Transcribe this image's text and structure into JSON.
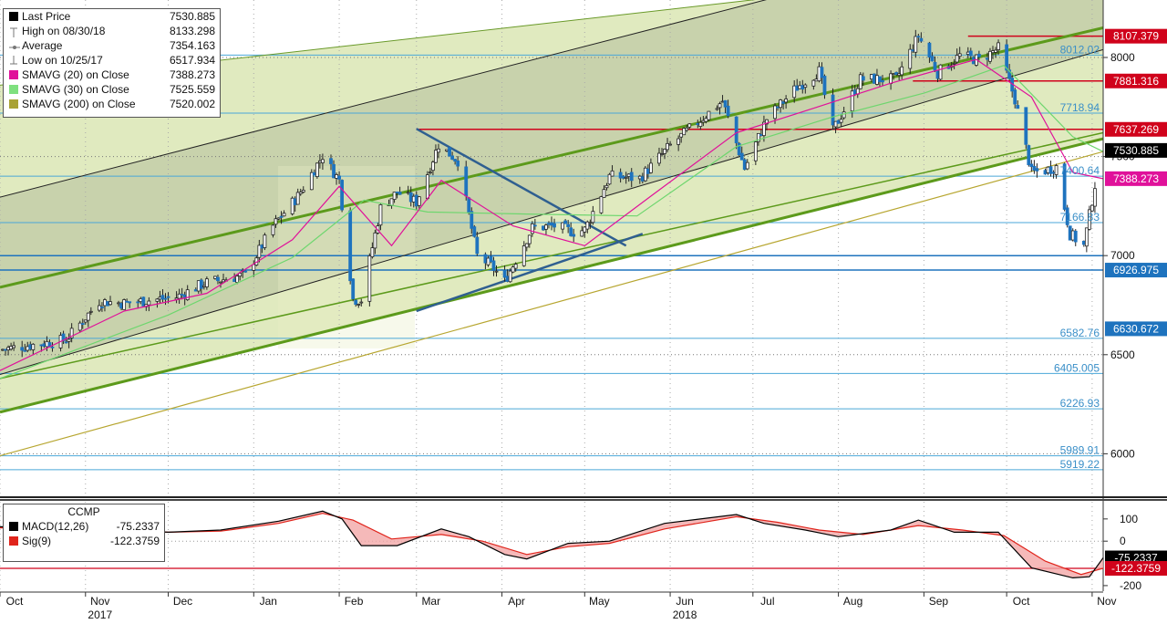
{
  "chart_data": {
    "type": "line",
    "title": "",
    "price_axis": {
      "ylim": [
        5790,
        8290
      ],
      "ticks": [
        {
          "value": 8000,
          "label": "8000"
        },
        {
          "value": 7500,
          "label": "7500"
        },
        {
          "value": 7000,
          "label": "7000"
        },
        {
          "value": 6500,
          "label": "6500"
        },
        {
          "value": 6000,
          "label": "6000"
        }
      ]
    },
    "x_axis": {
      "range": [
        "2017-10-01",
        "2018-11-05"
      ],
      "months": [
        {
          "date": "2017-10-01",
          "label": "Oct"
        },
        {
          "date": "2017-11-01",
          "label": "Nov"
        },
        {
          "date": "2017-12-01",
          "label": "Dec"
        },
        {
          "date": "2018-01-01",
          "label": "Jan"
        },
        {
          "date": "2018-02-01",
          "label": "Feb"
        },
        {
          "date": "2018-03-01",
          "label": "Mar"
        },
        {
          "date": "2018-04-01",
          "label": "Apr"
        },
        {
          "date": "2018-05-01",
          "label": "May"
        },
        {
          "date": "2018-06-01",
          "label": "Jun"
        },
        {
          "date": "2018-07-01",
          "label": "Jul"
        },
        {
          "date": "2018-08-01",
          "label": "Aug"
        },
        {
          "date": "2018-09-01",
          "label": "Sep"
        },
        {
          "date": "2018-10-01",
          "label": "Oct"
        },
        {
          "date": "2018-11-01",
          "label": "Nov"
        }
      ],
      "years": [
        {
          "date": "2017-11-01",
          "label": "2017"
        },
        {
          "date": "2018-06-01",
          "label": "2018"
        }
      ]
    },
    "legend": {
      "placement": "top-left",
      "items": [
        {
          "label": "Last Price",
          "value": "7530.885",
          "marker": "black-square",
          "color": "#000000"
        },
        {
          "label": "High on 08/30/18",
          "value": "8133.298",
          "marker": "high-icon",
          "color": "#777777"
        },
        {
          "label": "Average",
          "value": "7354.163",
          "marker": "average-icon",
          "color": "#777777"
        },
        {
          "label": "Low on 10/25/17",
          "value": "6517.934",
          "marker": "low-icon",
          "color": "#777777"
        },
        {
          "label": "SMAVG (20)  on Close",
          "value": "7388.273",
          "marker": "square",
          "color": "#e0119a"
        },
        {
          "label": "SMAVG (30)  on Close",
          "value": "7525.559",
          "marker": "square",
          "color": "#7fe07f"
        },
        {
          "label": "SMAVG (200)  on Close",
          "value": "7520.002",
          "marker": "square",
          "color": "#a9a235"
        }
      ]
    },
    "price_tags": [
      {
        "value": 8107.379,
        "label": "8107.379",
        "color": "#d0021b"
      },
      {
        "value": 7881.316,
        "label": "7881.316",
        "color": "#d0021b"
      },
      {
        "value": 7637.269,
        "label": "7637.269",
        "color": "#d0021b"
      },
      {
        "value": 7530.885,
        "label": "7530.885",
        "color": "#000000"
      },
      {
        "value": 7388.273,
        "label": "7388.273",
        "color": "#e0119a"
      },
      {
        "value": 6926.975,
        "label": "6926.975",
        "color": "#1e73be"
      },
      {
        "value": 6630.672,
        "label": "6630.672",
        "color": "#1e73be"
      }
    ],
    "fib_levels": [
      {
        "value": 8012.02,
        "label": "8012.02"
      },
      {
        "value": 7718.94,
        "label": "7718.94"
      },
      {
        "value": 7400.64,
        "label": "7400.64"
      },
      {
        "value": 7166.83,
        "label": "7166.83"
      },
      {
        "value": 6582.76,
        "label": "6582.76"
      },
      {
        "value": 6405.0,
        "label": "6405.005"
      },
      {
        "value": 6226.93,
        "label": "6226.93"
      },
      {
        "value": 5989.91,
        "label": "5989.91"
      },
      {
        "value": 5919.22,
        "label": "5919.22"
      }
    ],
    "red_lines": [
      {
        "start": "2018-09-17",
        "value": 8107.379
      },
      {
        "start": "2018-08-28",
        "value": 7881.316
      },
      {
        "start": "2018-03-01",
        "value": 7637.269
      }
    ],
    "blue_lines": [
      {
        "value": 6926.975
      },
      {
        "value": 7000
      }
    ],
    "channel": {
      "outer_upper": [
        [
          "2017-10-01",
          7860
        ],
        [
          "2018-09-21",
          8420
        ]
      ],
      "outer_lower": [
        [
          "2017-10-01",
          6210
        ],
        [
          "2018-11-05",
          7590
        ]
      ],
      "mid": [
        [
          "2017-10-01",
          6840
        ],
        [
          "2018-11-05",
          8150
        ]
      ],
      "inner_upper": [
        [
          "2017-10-01",
          7295
        ],
        [
          "2018-11-05",
          8730
        ]
      ],
      "inner_lower": [
        [
          "2017-10-01",
          6400
        ],
        [
          "2018-11-05",
          8040
        ]
      ],
      "minor_line": [
        [
          "2017-10-01",
          6380
        ],
        [
          "2018-11-05",
          7620
        ]
      ],
      "sma200_line": [
        [
          "2017-10-01",
          5990
        ],
        [
          "2018-11-05",
          7525
        ]
      ]
    },
    "triangle": {
      "upper": [
        [
          "2018-03-01",
          7640
        ],
        [
          "2018-05-16",
          7050
        ]
      ],
      "lower": [
        [
          "2018-03-01",
          6720
        ],
        [
          "2018-05-22",
          7110
        ]
      ]
    },
    "price": {
      "name": "Last Price",
      "anchors": [
        [
          "2017-10-01",
          6525
        ],
        [
          "2017-10-25",
          6575
        ],
        [
          "2017-11-06",
          6770
        ],
        [
          "2017-11-15",
          6760
        ],
        [
          "2017-12-04",
          6790
        ],
        [
          "2017-12-14",
          6860
        ],
        [
          "2017-12-29",
          6903
        ],
        [
          "2018-01-08",
          7150
        ],
        [
          "2018-01-17",
          7300
        ],
        [
          "2018-01-26",
          7505
        ],
        [
          "2018-02-01",
          7380
        ],
        [
          "2018-02-06",
          6780
        ],
        [
          "2018-02-09",
          6777
        ],
        [
          "2018-02-16",
          7240
        ],
        [
          "2018-02-22",
          7320
        ],
        [
          "2018-03-01",
          7270
        ],
        [
          "2018-03-09",
          7560
        ],
        [
          "2018-03-16",
          7480
        ],
        [
          "2018-03-23",
          7000
        ],
        [
          "2018-03-28",
          6950
        ],
        [
          "2018-04-02",
          6870
        ],
        [
          "2018-04-12",
          7140
        ],
        [
          "2018-04-20",
          7150
        ],
        [
          "2018-04-27",
          7120
        ],
        [
          "2018-05-01",
          7130
        ],
        [
          "2018-05-10",
          7400
        ],
        [
          "2018-05-21",
          7390
        ],
        [
          "2018-06-01",
          7555
        ],
        [
          "2018-06-20",
          7780
        ],
        [
          "2018-06-28",
          7440
        ],
        [
          "2018-07-06",
          7690
        ],
        [
          "2018-07-17",
          7850
        ],
        [
          "2018-07-25",
          7930
        ],
        [
          "2018-07-30",
          7630
        ],
        [
          "2018-08-09",
          7890
        ],
        [
          "2018-08-22",
          7890
        ],
        [
          "2018-08-30",
          8109
        ],
        [
          "2018-09-06",
          7923
        ],
        [
          "2018-09-14",
          8010
        ],
        [
          "2018-09-21",
          7987
        ],
        [
          "2018-09-28",
          8046
        ],
        [
          "2018-10-04",
          7790
        ],
        [
          "2018-10-10",
          7420
        ],
        [
          "2018-10-15",
          7430
        ],
        [
          "2018-10-19",
          7449
        ],
        [
          "2018-10-24",
          7108
        ],
        [
          "2018-10-29",
          7050
        ],
        [
          "2018-11-02",
          7357
        ],
        [
          "2018-11-05",
          7530
        ]
      ]
    },
    "sma20": {
      "name": "SMAVG (20)",
      "points": [
        [
          "2017-10-01",
          6420
        ],
        [
          "2017-11-15",
          6720
        ],
        [
          "2017-12-15",
          6810
        ],
        [
          "2018-01-15",
          7080
        ],
        [
          "2018-02-01",
          7350
        ],
        [
          "2018-02-20",
          7050
        ],
        [
          "2018-03-10",
          7380
        ],
        [
          "2018-04-05",
          7150
        ],
        [
          "2018-05-01",
          7050
        ],
        [
          "2018-05-25",
          7300
        ],
        [
          "2018-06-25",
          7620
        ],
        [
          "2018-07-20",
          7730
        ],
        [
          "2018-08-20",
          7870
        ],
        [
          "2018-09-20",
          7990
        ],
        [
          "2018-10-10",
          7800
        ],
        [
          "2018-10-25",
          7420
        ],
        [
          "2018-11-05",
          7388
        ]
      ]
    },
    "sma30": {
      "name": "SMAVG (30)",
      "points": [
        [
          "2017-10-01",
          6380
        ],
        [
          "2017-12-01",
          6700
        ],
        [
          "2018-01-15",
          6990
        ],
        [
          "2018-02-10",
          7280
        ],
        [
          "2018-03-05",
          7220
        ],
        [
          "2018-04-10",
          7210
        ],
        [
          "2018-05-20",
          7200
        ],
        [
          "2018-06-25",
          7550
        ],
        [
          "2018-07-30",
          7700
        ],
        [
          "2018-09-01",
          7820
        ],
        [
          "2018-09-30",
          7960
        ],
        [
          "2018-10-25",
          7600
        ],
        [
          "2018-11-05",
          7525
        ]
      ]
    },
    "macd_panel": {
      "title": "CCMP",
      "ylim": [
        -225,
        165
      ],
      "ticks": [
        {
          "value": 100,
          "label": "100"
        },
        {
          "value": 0,
          "label": "0"
        },
        {
          "value": -200,
          "label": "-200"
        }
      ],
      "legend": [
        {
          "label": "MACD(12,26)",
          "value": "-75.2337",
          "color": "#000000"
        },
        {
          "label": "Sig(9)",
          "value": "-122.3759",
          "color": "#e0241b"
        }
      ],
      "tags": [
        {
          "value": -75.2337,
          "label": "-75.2337",
          "color": "#000000"
        },
        {
          "value": -122.3759,
          "label": "-122.3759",
          "color": "#d0021b"
        }
      ],
      "ref_line": -122.3759,
      "macd": [
        [
          "2017-10-01",
          65
        ],
        [
          "2017-11-01",
          60
        ],
        [
          "2017-12-01",
          40
        ],
        [
          "2017-12-20",
          50
        ],
        [
          "2018-01-10",
          90
        ],
        [
          "2018-01-26",
          135
        ],
        [
          "2018-02-02",
          100
        ],
        [
          "2018-02-09",
          -20
        ],
        [
          "2018-02-22",
          -20
        ],
        [
          "2018-03-10",
          55
        ],
        [
          "2018-03-20",
          20
        ],
        [
          "2018-04-02",
          -60
        ],
        [
          "2018-04-10",
          -80
        ],
        [
          "2018-04-25",
          -10
        ],
        [
          "2018-05-10",
          0
        ],
        [
          "2018-05-30",
          80
        ],
        [
          "2018-06-25",
          120
        ],
        [
          "2018-07-05",
          80
        ],
        [
          "2018-07-20",
          50
        ],
        [
          "2018-08-01",
          20
        ],
        [
          "2018-08-20",
          50
        ],
        [
          "2018-08-30",
          95
        ],
        [
          "2018-09-12",
          40
        ],
        [
          "2018-09-28",
          40
        ],
        [
          "2018-10-10",
          -120
        ],
        [
          "2018-10-25",
          -165
        ],
        [
          "2018-10-31",
          -160
        ],
        [
          "2018-11-05",
          -75
        ]
      ],
      "signal": [
        [
          "2017-10-01",
          60
        ],
        [
          "2017-11-01",
          58
        ],
        [
          "2017-12-01",
          40
        ],
        [
          "2017-12-20",
          45
        ],
        [
          "2018-01-10",
          80
        ],
        [
          "2018-01-26",
          125
        ],
        [
          "2018-02-06",
          95
        ],
        [
          "2018-02-20",
          10
        ],
        [
          "2018-03-10",
          30
        ],
        [
          "2018-03-25",
          0
        ],
        [
          "2018-04-10",
          -60
        ],
        [
          "2018-04-25",
          -25
        ],
        [
          "2018-05-10",
          -10
        ],
        [
          "2018-05-30",
          55
        ],
        [
          "2018-06-25",
          110
        ],
        [
          "2018-07-10",
          85
        ],
        [
          "2018-07-25",
          50
        ],
        [
          "2018-08-10",
          30
        ],
        [
          "2018-08-30",
          70
        ],
        [
          "2018-09-15",
          50
        ],
        [
          "2018-09-30",
          25
        ],
        [
          "2018-10-15",
          -90
        ],
        [
          "2018-10-28",
          -150
        ],
        [
          "2018-11-05",
          -122
        ]
      ]
    },
    "colors": {
      "candle": "#1e73be",
      "channel_fill": "#c6d98a",
      "channel_gray": "#bbbbbb",
      "green_line": "#5c9a1b",
      "sma200": "#b7a630",
      "sma30": "#6ed66e",
      "sma20": "#e0119a",
      "red_line": "#d0021b",
      "triangle": "#2f5f90",
      "macd_fill": "#f2a7a7"
    }
  }
}
